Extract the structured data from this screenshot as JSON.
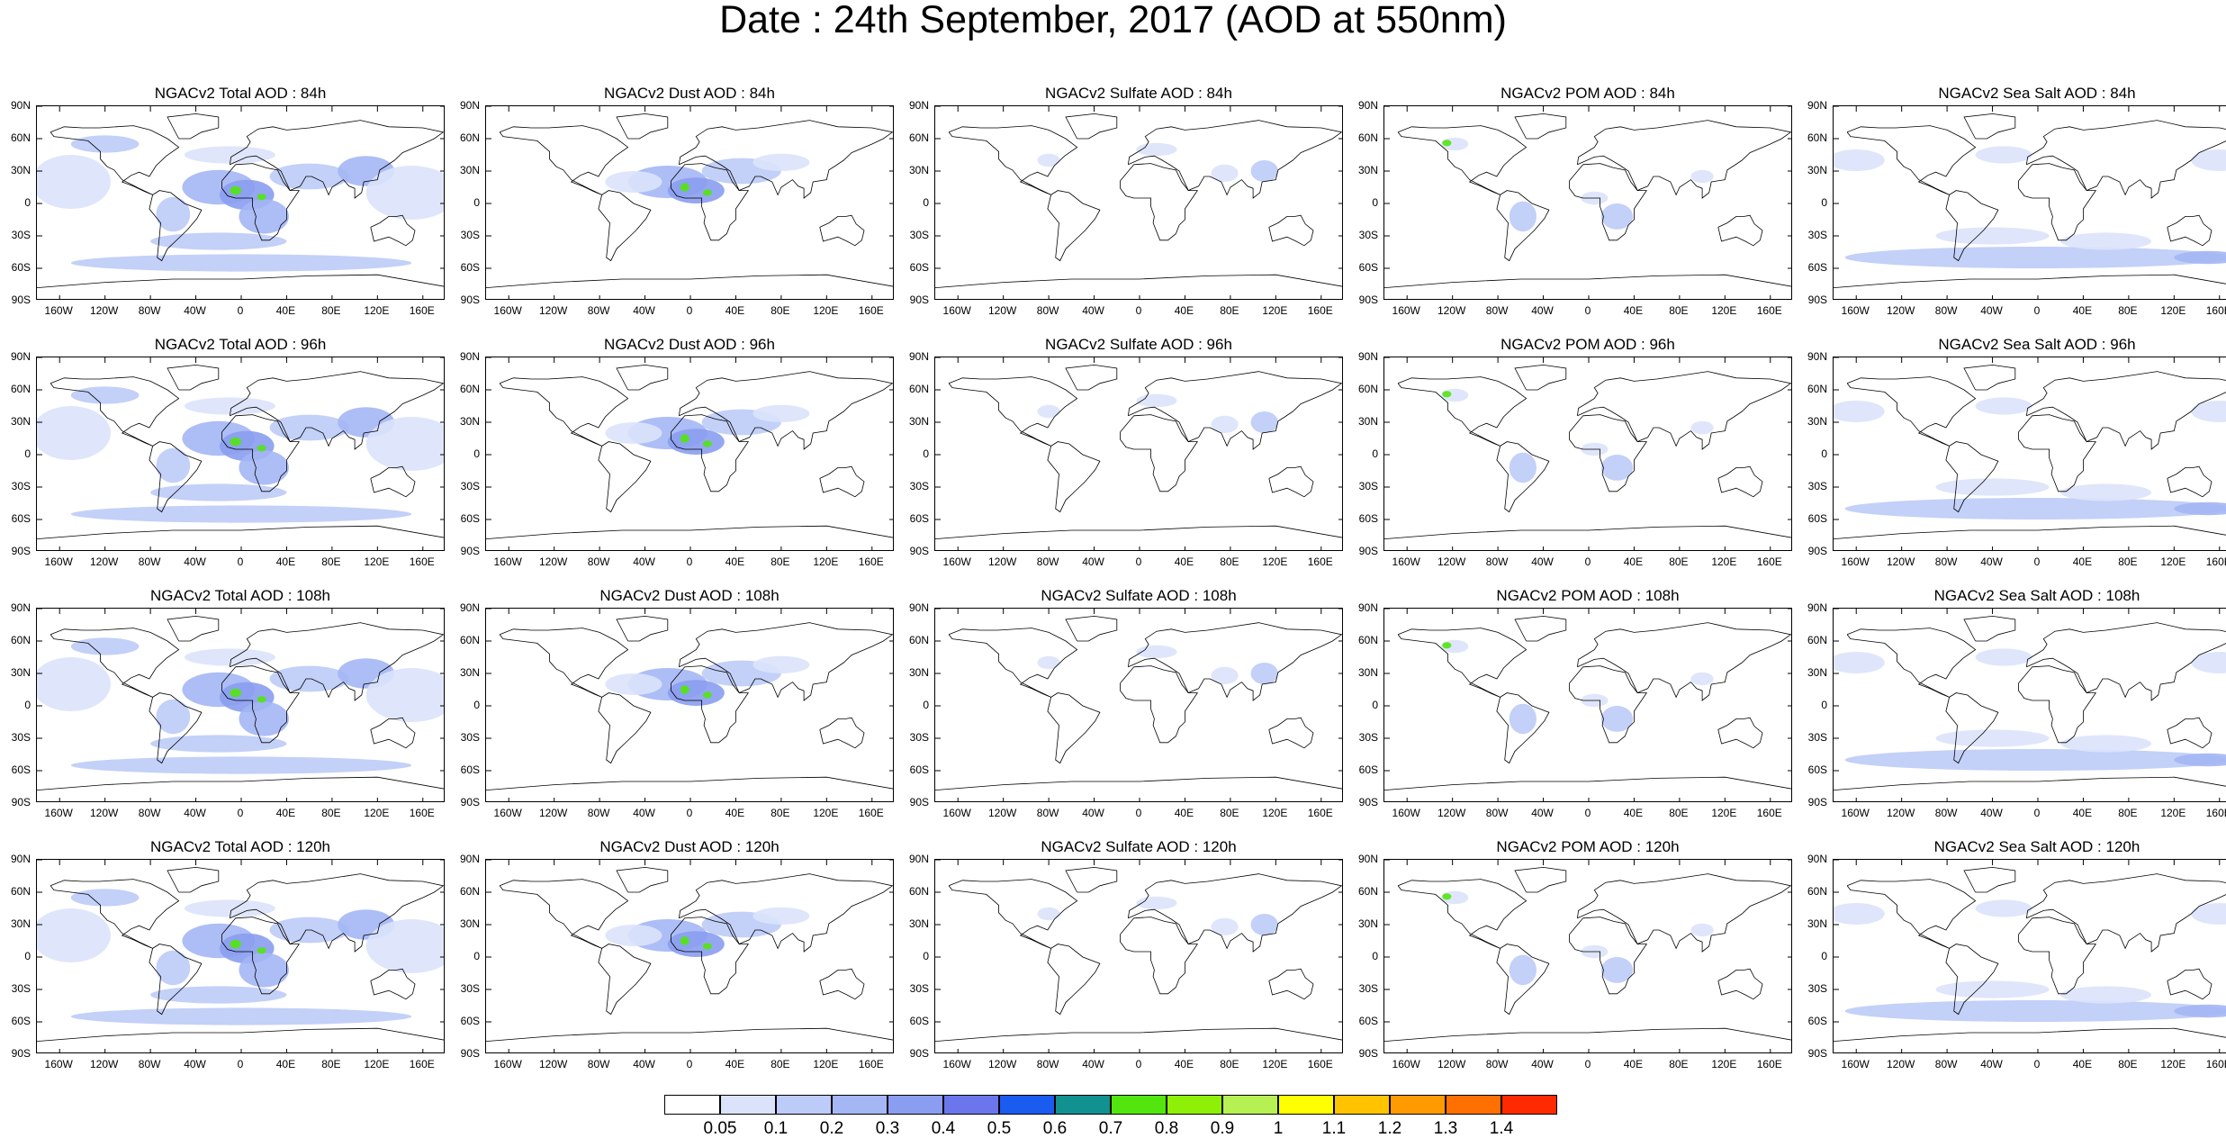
{
  "title": "Date : 24th September, 2017 (AOD at 550nm)",
  "columns": [
    {
      "key": "total",
      "titles": [
        "NGACv2 Total AOD : 84h",
        "NGACv2 Total AOD : 96h",
        "NGACv2 Total AOD : 108h",
        "NGACv2 Total AOD : 120h"
      ]
    },
    {
      "key": "dust",
      "titles": [
        "NGACv2 Dust AOD : 84h",
        "NGACv2 Dust AOD : 96h",
        "NGACv2 Dust AOD : 108h",
        "NGACv2 Dust AOD : 120h"
      ]
    },
    {
      "key": "sulfate",
      "titles": [
        "NGACv2 Sulfate AOD : 84h",
        "NGACv2 Sulfate AOD : 96h",
        "NGACv2 Sulfate AOD : 108h",
        "NGACv2 Sulfate AOD : 120h"
      ]
    },
    {
      "key": "pom",
      "titles": [
        "NGACv2 POM AOD : 84h",
        "NGACv2 POM AOD : 96h",
        "NGACv2 POM AOD : 108h",
        "NGACv2 POM AOD : 120h"
      ]
    },
    {
      "key": "seasalt",
      "titles": [
        "NGACv2 Sea Salt AOD : 84h",
        "NGACv2 Sea Salt AOD : 96h",
        "NGACv2 Sea Salt AOD : 108h",
        "NGACv2 Sea Salt  AOD : 120h"
      ]
    }
  ],
  "lat_labels": [
    "90N",
    "60N",
    "30N",
    "0",
    "30S",
    "60S",
    "90S"
  ],
  "lon_labels": [
    "160W",
    "120W",
    "80W",
    "40W",
    "0",
    "40E",
    "80E",
    "120E",
    "160E"
  ],
  "colorbar": {
    "levels": [
      "0.05",
      "0.1",
      "0.2",
      "0.3",
      "0.4",
      "0.5",
      "0.6",
      "0.7",
      "0.8",
      "0.9",
      "1",
      "1.1",
      "1.2",
      "1.3",
      "1.4"
    ],
    "colors": [
      "#ffffff",
      "#dbe3fb",
      "#bccbf7",
      "#a4b6f4",
      "#8a9df0",
      "#6b76ec",
      "#1a5bf0",
      "#119190",
      "#52e60e",
      "#8ff007",
      "#b6f052",
      "#ffff00",
      "#ffc300",
      "#ff9a00",
      "#ff7000",
      "#ff2a00"
    ]
  },
  "aod_palette": {
    "low": "#dbe3fb",
    "mid": "#bccbf7",
    "high": "#a4b6f4",
    "vhigh": "#8a9df0",
    "peak": "#52e60e"
  }
}
